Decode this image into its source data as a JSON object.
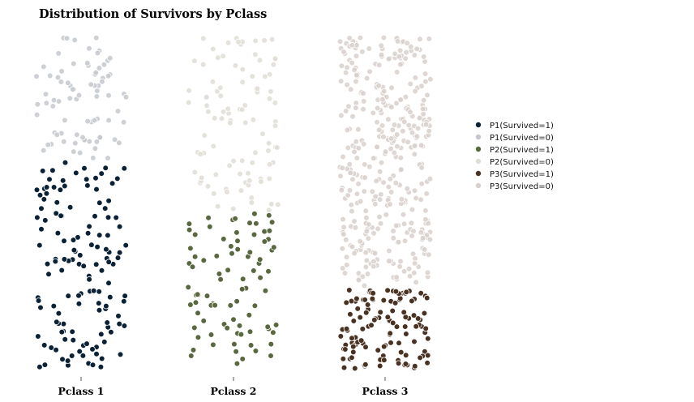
{
  "chart_data": {
    "type": "scatter",
    "title": "Distribution of Survivors by Pclass",
    "xlabel": "",
    "ylabel": "",
    "categories": [
      "Pclass 1",
      "Pclass 2",
      "Pclass 3"
    ],
    "legend_position": "right",
    "grid": false,
    "jitter_note_x": "horizontal jitter within each class column",
    "series": [
      {
        "name": "P1(Survived=1)",
        "category": "Pclass 1",
        "count": 136,
        "color": "#0b2236",
        "edge": "#ffffff"
      },
      {
        "name": "P1(Survived=0)",
        "category": "Pclass 1",
        "count": 80,
        "color": "#c4c8cc",
        "edge": "#ffffff"
      },
      {
        "name": "P2(Survived=1)",
        "category": "Pclass 2",
        "count": 87,
        "color": "#5a6840",
        "edge": "#ffffff"
      },
      {
        "name": "P2(Survived=0)",
        "category": "Pclass 2",
        "count": 97,
        "color": "#e0ddd6",
        "edge": "#ffffff"
      },
      {
        "name": "P3(Survived=1)",
        "category": "Pclass 3",
        "count": 119,
        "color": "#4a3222",
        "edge": "#ffffff"
      },
      {
        "name": "P3(Survived=0)",
        "category": "Pclass 3",
        "count": 372,
        "color": "#d8d0cb",
        "edge": "#ffffff"
      }
    ]
  }
}
